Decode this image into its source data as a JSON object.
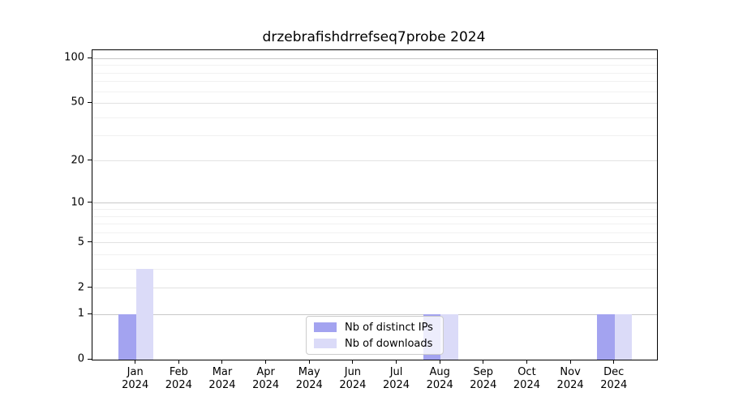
{
  "title": "drzebrafishdrrefseq7probe 2024",
  "chart_data": {
    "type": "bar",
    "title": "drzebrafishdrrefseq7probe 2024",
    "categories": [
      "Jan 2024",
      "Feb 2024",
      "Mar 2024",
      "Apr 2024",
      "May 2024",
      "Jun 2024",
      "Jul 2024",
      "Aug 2024",
      "Sep 2024",
      "Oct 2024",
      "Nov 2024",
      "Dec 2024"
    ],
    "series": [
      {
        "name": "Nb of distinct IPs",
        "color": "#a3a3f0",
        "values": [
          1,
          0,
          0,
          0,
          0,
          0,
          0,
          1,
          0,
          0,
          0,
          1
        ]
      },
      {
        "name": "Nb of downloads",
        "color": "#dbdbf8",
        "values": [
          3,
          0,
          0,
          0,
          0,
          0,
          0,
          1,
          0,
          0,
          0,
          1
        ]
      }
    ],
    "xlabel": "",
    "ylabel": "",
    "yscale": "log1p",
    "ylim": [
      0,
      114
    ],
    "y_ticks": [
      0,
      1,
      2,
      5,
      10,
      20,
      50,
      100
    ],
    "y_minor_ticks": [
      3,
      4,
      6,
      7,
      8,
      9,
      30,
      40,
      60,
      70,
      80,
      90
    ],
    "grid": "horizontal",
    "grid_color_major": "#c9c9c9",
    "grid_color_mid": "#e2e2e2",
    "grid_color_minor": "#f1f1f1",
    "legend_position": "lower center"
  }
}
